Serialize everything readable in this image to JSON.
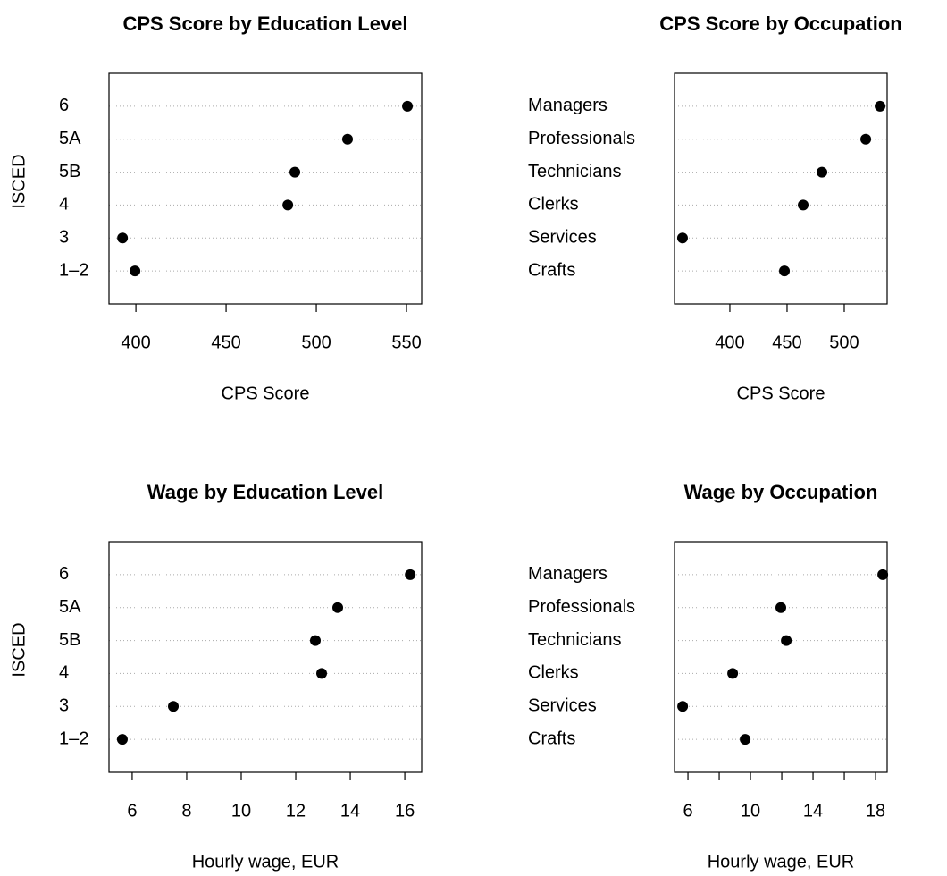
{
  "chart_data": [
    {
      "type": "dot",
      "title": "CPS Score by Education Level",
      "categories": [
        "6",
        "5A",
        "5B",
        "4",
        "3",
        "1–2"
      ],
      "values": [
        550.5,
        517.3,
        488.1,
        484.2,
        392.6,
        399.5
      ],
      "xlim": [
        385.1,
        558.4
      ],
      "xticks": [
        400,
        450,
        500,
        550
      ],
      "xlabel": "CPS Score",
      "ylabel": "ISCED",
      "color": "#000000",
      "grid": true
    },
    {
      "type": "dot",
      "title": "CPS Score by Occupation",
      "categories": [
        "Managers",
        "Professionals",
        "Technicians",
        "Clerks",
        "Services",
        "Crafts"
      ],
      "values": [
        531.3,
        518.8,
        480.5,
        464.1,
        358.6,
        447.7
      ],
      "xlim": [
        351.6,
        537.5
      ],
      "xticks": [
        400,
        450,
        500
      ],
      "xlabel": "CPS Score",
      "color": "#000000",
      "grid": true
    },
    {
      "type": "dot",
      "title": "Wage by Education Level",
      "categories": [
        "6",
        "5A",
        "5B",
        "4",
        "3",
        "1–2"
      ],
      "values": [
        16.2,
        13.54,
        12.72,
        12.95,
        7.51,
        5.64
      ],
      "xlim": [
        5.15,
        16.62
      ],
      "xticks": [
        6,
        8,
        10,
        12,
        14,
        16
      ],
      "xlabel": "Hourly wage, EUR",
      "ylabel": "ISCED",
      "color": "#000000",
      "grid": true
    },
    {
      "type": "dot",
      "title": "Wage by Occupation",
      "categories": [
        "Managers",
        "Professionals",
        "Technicians",
        "Clerks",
        "Services",
        "Crafts"
      ],
      "values": [
        18.46,
        11.94,
        12.29,
        8.86,
        5.66,
        9.66
      ],
      "xlim": [
        5.14,
        18.74
      ],
      "xticks": [
        6,
        10,
        14,
        18
      ],
      "xminor_ticks": [
        8,
        12,
        16
      ],
      "xlabel": "Hourly wage, EUR",
      "color": "#000000",
      "grid": true
    }
  ]
}
